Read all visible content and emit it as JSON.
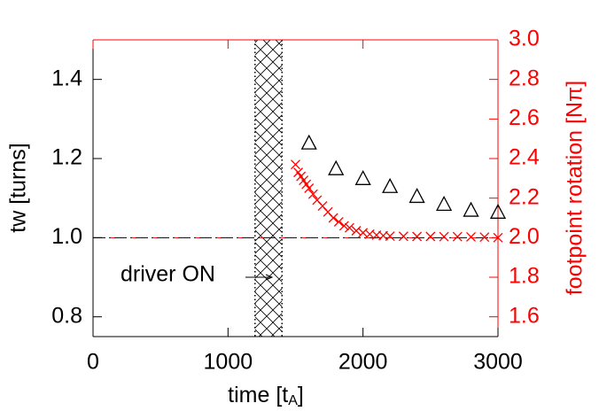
{
  "chart_data": {
    "type": "scatter",
    "xlabel": [
      "time [t",
      "A",
      "]"
    ],
    "ylabel": "tw [turns]",
    "y2label": "footpoint rotation [Nπ]",
    "annotation": "driver ON",
    "xlim": [
      0,
      3000
    ],
    "xticks": [
      0,
      1000,
      2000,
      3000
    ],
    "ylim": [
      0.75,
      1.5
    ],
    "yticks": [
      {
        "value": 0.8,
        "label": "0.8"
      },
      {
        "value": 1.0,
        "label": "1.0"
      },
      {
        "value": 1.2,
        "label": "1.2"
      },
      {
        "value": 1.4,
        "label": "1.4"
      }
    ],
    "y2lim": [
      1.5,
      3.0
    ],
    "y2ticks": [
      {
        "value": 1.6,
        "label": "1.6"
      },
      {
        "value": 1.8,
        "label": "1.8"
      },
      {
        "value": 2.0,
        "label": "2.0"
      },
      {
        "value": 2.2,
        "label": "2.2"
      },
      {
        "value": 2.4,
        "label": "2.4"
      },
      {
        "value": 2.6,
        "label": "2.6"
      },
      {
        "value": 2.8,
        "label": "2.8"
      },
      {
        "value": 3.0,
        "label": "3.0"
      }
    ],
    "y2color": "#ff0000",
    "hline": 1.0,
    "shade": [
      1200,
      1400
    ],
    "series": [
      {
        "marker": "triangle",
        "color": "#000000",
        "axis": "y",
        "x": [
          1600,
          1800,
          2000,
          2200,
          2400,
          2600,
          2800,
          3000
        ],
        "values": [
          1.24,
          1.175,
          1.15,
          1.13,
          1.105,
          1.085,
          1.07,
          1.065
        ]
      },
      {
        "marker": "cross",
        "color": "#ff0000",
        "axis": "y2",
        "x": [
          1500,
          1520,
          1540,
          1560,
          1580,
          1600,
          1630,
          1660,
          1700,
          1740,
          1780,
          1820,
          1860,
          1900,
          1950,
          2000,
          2050,
          2100,
          2150,
          2200,
          2300,
          2400,
          2500,
          2600,
          2700,
          2800,
          2900,
          3000
        ],
        "values": [
          2.37,
          2.33,
          2.31,
          2.29,
          2.27,
          2.25,
          2.22,
          2.19,
          2.16,
          2.13,
          2.1,
          2.08,
          2.06,
          2.05,
          2.035,
          2.025,
          2.018,
          2.013,
          2.01,
          2.008,
          2.007,
          2.006,
          2.006,
          2.005,
          2.005,
          2.004,
          2.003,
          2.0
        ]
      }
    ]
  }
}
